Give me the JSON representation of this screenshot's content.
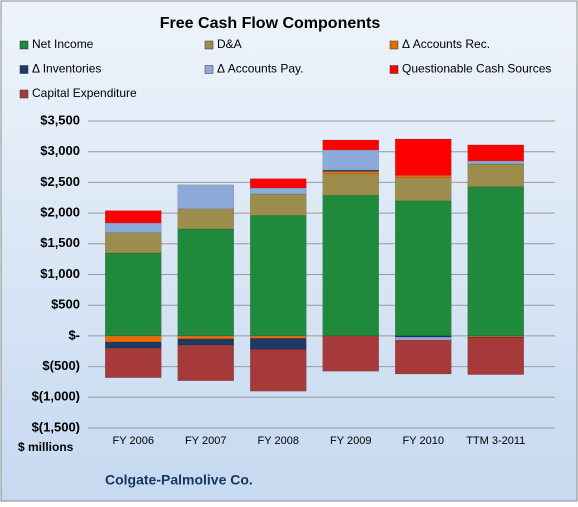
{
  "chart_data": {
    "type": "stacked_bar",
    "title": "Free Cash Flow Components",
    "categories": [
      "FY 2006",
      "FY 2007",
      "FY 2008",
      "FY 2009",
      "FY 2010",
      "TTM 3-2011"
    ],
    "series": [
      {
        "name": "Net Income",
        "color": "#1f8a3c",
        "values": [
          1350,
          1740,
          1960,
          2290,
          2200,
          2430
        ]
      },
      {
        "name": "D&A",
        "color": "#9c8d4c",
        "values": [
          330,
          330,
          350,
          350,
          376,
          370
        ]
      },
      {
        "name": "Δ Accounts Rec.",
        "color": "#e46c0a",
        "values": [
          -100,
          -50,
          -40,
          40,
          40,
          -20
        ]
      },
      {
        "name": "Δ Inventories",
        "color": "#1f3864",
        "values": [
          -100,
          -100,
          -180,
          20,
          -20,
          -10
        ]
      },
      {
        "name": "Δ Accounts Pay.",
        "color": "#8eaadb",
        "values": [
          160,
          390,
          100,
          330,
          -50,
          50
        ]
      },
      {
        "name": "Questionable Cash Sources",
        "color": "#ff0000",
        "values": [
          200,
          0,
          150,
          160,
          590,
          260
        ]
      },
      {
        "name": "Capital Expenditure",
        "color": "#a63a3a",
        "values": [
          -480,
          -580,
          -680,
          -575,
          -550,
          -600
        ]
      }
    ],
    "ylim": [
      -1500,
      3500
    ],
    "yticks": [
      {
        "value": -1500,
        "label": "$(1,500)"
      },
      {
        "value": -1000,
        "label": "$(1,000)"
      },
      {
        "value": -500,
        "label": "$(500)"
      },
      {
        "value": 0,
        "label": "$-"
      },
      {
        "value": 500,
        "label": "$500"
      },
      {
        "value": 1000,
        "label": "$1,000"
      },
      {
        "value": 1500,
        "label": "$1,500"
      },
      {
        "value": 2000,
        "label": "$2,000"
      },
      {
        "value": 2500,
        "label": "$2,500"
      },
      {
        "value": 3000,
        "label": "$3,000"
      },
      {
        "value": 3500,
        "label": "$3,500"
      }
    ],
    "ylabel": "$ millions",
    "footnote": "Colgate-Palmolive Co.",
    "grid": true
  }
}
